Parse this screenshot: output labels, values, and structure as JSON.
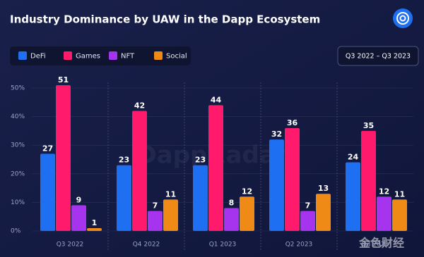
{
  "chart_data": {
    "type": "bar",
    "title": "Industry Dominance by UAW in the Dapp Ecosystem",
    "date_range": "Q3 2022 – Q3 2023",
    "watermark": "DappRadar",
    "source_watermark": "金色财经",
    "categories": [
      "Q3 2022",
      "Q4 2022",
      "Q1 2023",
      "Q2 2023",
      "Q3 2023"
    ],
    "series": [
      {
        "name": "DeFi",
        "color": "#1f6ff2",
        "values": [
          27,
          23,
          23,
          32,
          24
        ]
      },
      {
        "name": "Games",
        "color": "#ff1a6c",
        "values": [
          51,
          42,
          44,
          36,
          35
        ]
      },
      {
        "name": "NFT",
        "color": "#a634ee",
        "values": [
          9,
          7,
          8,
          7,
          12
        ]
      },
      {
        "name": "Social",
        "color": "#f08a17",
        "values": [
          1,
          11,
          12,
          13,
          11
        ]
      }
    ],
    "ylim": [
      0,
      50
    ],
    "yticks": [
      {
        "value": 0,
        "label": "0%"
      },
      {
        "value": 10,
        "label": "10%"
      },
      {
        "value": 20,
        "label": "20%"
      },
      {
        "value": 30,
        "label": "30%"
      },
      {
        "value": 40,
        "label": "40%"
      },
      {
        "value": 50,
        "label": "50%"
      }
    ],
    "grid": true
  }
}
